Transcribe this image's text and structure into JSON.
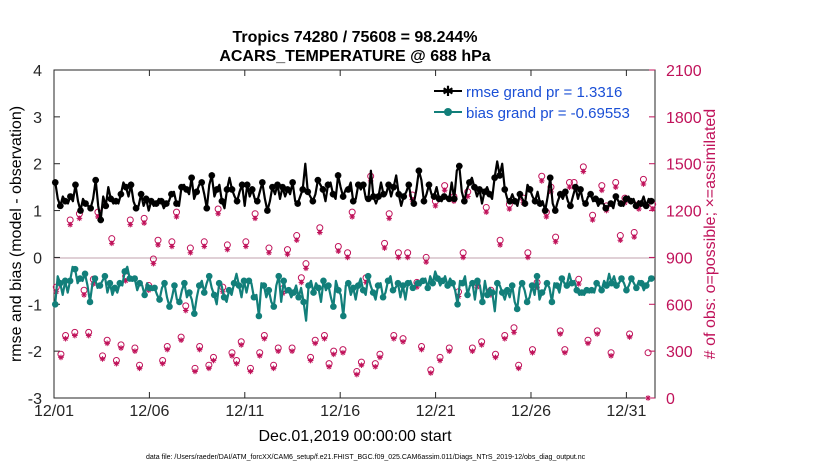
{
  "chart_data": {
    "type": "line",
    "title": "Tropics 74280 / 75608 = 98.244%",
    "subtitle": "ACARS_TEMPERATURE @ 688 hPa",
    "xlabel": "Dec.01,2019 00:00:00 start",
    "ylabel": "rmse and bias (model - observation)",
    "y2label": "# of obs: o=possible; ×=assimilated",
    "footnote": "data file: /Users/raeder/DAI/ATM_forcXX/CAM6_setup/f.e21.FHIST_BGC.f09_025.CAM6assim.011/Diags_NTrS_2019-12/obs_diag_output.nc",
    "xlim": [
      0,
      31.5
    ],
    "ylim": [
      -3,
      4
    ],
    "y2lim": [
      0,
      2100
    ],
    "x_ticks": [
      0,
      5,
      10,
      15,
      20,
      25,
      30
    ],
    "x_tick_labels": [
      "12/01",
      "12/06",
      "12/11",
      "12/16",
      "12/21",
      "12/26",
      "12/31"
    ],
    "y_ticks": [
      -3,
      -2,
      -1,
      0,
      1,
      2,
      3,
      4
    ],
    "y_tick_labels": [
      "-3",
      "-2",
      "-1",
      "0",
      "1",
      "2",
      "3",
      "4"
    ],
    "y2_ticks": [
      0,
      300,
      600,
      900,
      1200,
      1500,
      1800,
      2100
    ],
    "y2_tick_labels": [
      "0",
      "300",
      "600",
      "900",
      "1200",
      "1500",
      "1800",
      "2100"
    ],
    "legend_position": "top-right",
    "series": [
      {
        "name": "rmse grand pr = 1.3316",
        "color": "#000000",
        "marker": "star",
        "values": [
          1.6,
          1.25,
          1.1,
          1.3,
          1.2,
          1.15,
          1.3,
          1.2,
          1.55,
          1.2,
          1.0,
          1.25,
          1.15,
          1.1,
          1.05,
          1.25,
          1.65,
          1.1,
          0.8,
          1.3,
          1.1,
          1.5,
          1.25,
          1.15,
          1.2,
          1.15,
          1.35,
          1.6,
          1.5,
          1.3,
          1.55,
          1.2,
          1.05,
          1.1,
          1.35,
          1.1,
          1.25,
          1.0,
          1.2,
          1.1,
          1.15,
          1.25,
          1.2,
          1.05,
          1.15,
          1.2,
          1.35,
          1.4,
          1.15,
          1.1,
          1.5,
          1.55,
          1.45,
          1.35,
          1.7,
          1.25,
          1.4,
          1.55,
          1.6,
          1.35,
          1.05,
          1.55,
          1.75,
          1.3,
          1.45,
          1.55,
          1.2,
          1.05,
          1.45,
          1.7,
          1.45,
          1.3,
          1.2,
          1.4,
          1.55,
          1.1,
          1.55,
          1.3,
          1.45,
          1.25,
          1.2,
          1.4,
          1.6,
          1.25,
          1.0,
          1.2,
          1.5,
          1.35,
          1.55,
          1.25,
          1.5,
          1.3,
          1.45,
          1.35,
          1.6,
          1.2,
          1.15,
          1.3,
          1.45,
          2.0,
          1.4,
          1.3,
          1.2,
          1.35,
          1.65,
          1.55,
          1.45,
          1.2,
          1.55,
          1.6,
          1.35,
          1.25,
          1.75,
          1.5,
          1.3,
          1.45,
          1.45,
          1.6,
          1.2,
          1.25,
          1.55,
          1.45,
          1.55,
          1.25,
          1.25,
          1.85,
          1.3,
          1.15,
          1.3,
          1.6,
          1.35,
          1.35,
          1.55,
          1.3,
          1.5,
          1.75,
          1.35,
          1.1,
          1.3,
          1.4,
          1.55,
          1.25,
          1.15,
          1.45,
          1.85,
          1.65,
          1.2,
          1.35,
          1.55,
          1.35,
          1.3,
          1.5,
          1.25,
          1.2,
          1.3,
          1.3,
          1.25,
          1.6,
          1.25,
          1.85,
          1.95,
          1.4,
          1.2,
          1.45,
          1.6,
          1.7,
          1.5,
          1.3,
          1.45,
          1.15,
          1.4,
          1.5,
          1.35,
          1.25,
          1.7,
          2.05,
          1.75,
          2.0,
          1.45,
          1.25,
          1.2,
          1.35,
          1.2,
          1.1,
          1.35,
          1.25,
          1.15,
          1.55,
          1.45,
          1.3,
          1.2,
          1.4,
          1.15,
          1.2,
          1.0,
          1.3,
          1.7,
          1.15,
          1.0,
          1.2,
          1.35,
          1.25,
          1.4,
          1.2,
          1.1,
          1.3,
          1.5,
          1.25,
          1.45,
          1.2,
          1.15,
          1.3,
          1.35,
          1.2,
          1.25,
          1.1,
          1.2,
          1.15,
          1.05,
          1.1,
          1.15,
          1.05,
          1.3,
          1.2,
          1.15,
          1.1,
          1.25,
          1.3,
          1.2,
          1.25,
          1.1,
          1.2,
          1.15,
          1.3,
          1.1,
          1.25,
          1.2,
          1.25
        ]
      },
      {
        "name": "bias grand pr = -0.69553",
        "color": "#127f7a",
        "marker": "circle",
        "values": [
          -1.0,
          -0.4,
          -0.55,
          -0.8,
          -0.5,
          -0.75,
          -0.5,
          -0.2,
          -0.25,
          -0.55,
          -0.45,
          -0.5,
          -0.35,
          -0.6,
          -0.95,
          -0.55,
          -0.45,
          -0.65,
          -0.6,
          -0.5,
          -0.4,
          -0.75,
          -0.55,
          -0.8,
          -0.65,
          -0.75,
          -0.55,
          -0.6,
          -0.3,
          -0.2,
          -0.45,
          -0.5,
          -0.45,
          -0.7,
          -0.55,
          -0.6,
          -0.8,
          -0.55,
          -0.65,
          -0.7,
          -0.65,
          -0.8,
          -0.9,
          -0.65,
          -0.55,
          -0.85,
          -1.05,
          -0.85,
          -0.6,
          -0.9,
          -0.95,
          -0.7,
          -0.55,
          -0.85,
          -0.75,
          -0.9,
          -1.2,
          -0.85,
          -0.6,
          -0.5,
          -0.75,
          -0.55,
          -0.4,
          -0.65,
          -0.8,
          -1.0,
          -0.55,
          -0.6,
          -0.85,
          -0.95,
          -0.7,
          -0.8,
          -0.55,
          -0.35,
          -0.6,
          -0.85,
          -0.5,
          -0.75,
          -0.5,
          -0.55,
          -0.85,
          -0.8,
          -1.25,
          -0.55,
          -0.6,
          -0.85,
          -0.7,
          -0.95,
          -1.05,
          -0.6,
          -0.4,
          -0.95,
          -0.5,
          -0.75,
          -0.7,
          -0.85,
          -0.75,
          -0.6,
          -0.85,
          -0.65,
          -0.95,
          -1.35,
          -0.6,
          -0.5,
          -0.75,
          -0.55,
          -0.65,
          -0.95,
          -0.5,
          -0.7,
          -0.6,
          -0.85,
          -1.05,
          -0.5,
          -0.7,
          -0.8,
          -1.25,
          -0.6,
          -0.55,
          -0.8,
          -0.65,
          -0.9,
          -0.6,
          -0.45,
          -0.7,
          -0.8,
          -0.4,
          -0.6,
          -0.75,
          -0.9,
          -0.6,
          -0.55,
          -0.85,
          -0.75,
          -0.5,
          -0.4,
          -0.7,
          -0.65,
          -0.55,
          -0.85,
          -0.6,
          -0.9,
          -0.55,
          -0.5,
          -0.65,
          -0.6,
          -0.55,
          -0.6,
          -0.5,
          -0.45,
          -0.65,
          -0.4,
          -0.55,
          -0.3,
          -0.45,
          -0.6,
          -0.5,
          -0.4,
          -0.6,
          -0.45,
          -0.55,
          -0.7,
          -1.0,
          -0.5,
          -0.55,
          -0.4,
          -0.8,
          -0.6,
          -0.55,
          -0.9,
          -0.5,
          -0.6,
          -0.95,
          -0.5,
          -0.8,
          -0.65,
          -0.75,
          -1.15,
          -0.55,
          -0.6,
          -0.75,
          -0.9,
          -0.7,
          -0.85,
          -0.6,
          -0.95,
          -1.1,
          -0.65,
          -0.55,
          -0.7,
          -0.95,
          -0.85,
          -0.6,
          -0.8,
          -0.4,
          -0.9,
          -0.75,
          -0.7,
          -0.55,
          -0.65,
          -0.95,
          -0.55,
          -0.6,
          -0.75,
          -0.45,
          -0.55,
          -0.6,
          -0.35,
          -0.55,
          -0.5,
          -0.7,
          -0.8,
          -0.75,
          -0.8,
          -0.7,
          -0.75,
          -0.7,
          -0.75,
          -0.55,
          -0.6,
          -0.7,
          -0.5,
          -0.6,
          -0.35,
          -0.55,
          -0.4,
          -0.6,
          -0.55,
          -0.45,
          -0.55,
          -0.7,
          -0.6,
          -0.45,
          -0.55,
          -0.65,
          -0.5,
          -0.55,
          -0.7,
          -0.6,
          -0.5,
          -0.45,
          -0.4
        ]
      },
      {
        "name": "obs possible",
        "color": "#c0125a",
        "marker": "circle-open",
        "axis": "right",
        "values": [
          710,
          280,
          400,
          1140,
          420,
          1180,
          690,
          420,
          760,
          1190,
          270,
          370,
          1020,
          240,
          340,
          780,
          1140,
          320,
          210,
          1150,
          720,
          890,
          1010,
          240,
          330,
          1000,
          1190,
          390,
          590,
          960,
          190,
          330,
          1000,
          210,
          260,
          1210,
          710,
          980,
          290,
          240,
          360,
          1000,
          190,
          1180,
          290,
          400,
          960,
          210,
          320,
          700,
          950,
          320,
          1040,
          770,
          860,
          260,
          370,
          1090,
          400,
          220,
          300,
          970,
          310,
          930,
          1190,
          170,
          230,
          770,
          1420,
          220,
          280,
          990,
          1180,
          400,
          930,
          380,
          930,
          1300,
          740,
          330,
          900,
          180,
          1260,
          260,
          1360,
          320,
          1290,
          680,
          930,
          1320,
          320,
          740,
          360,
          1220,
          690,
          280,
          1010,
          400,
          1240,
          450,
          210,
          1280,
          930,
          310,
          740,
          1420,
          1190,
          1350,
          1030,
          430,
          310,
          1380,
          1380,
          760,
          1480,
          370,
          1170,
          430,
          1360,
          1230,
          290,
          1380,
          1040,
          1280,
          410,
          1060,
          1240,
          1400,
          290,
          1240
        ]
      },
      {
        "name": "obs assimilated",
        "color": "#c0125a",
        "marker": "x",
        "axis": "right",
        "values": [
          680,
          260,
          380,
          1110,
          400,
          1150,
          660,
          400,
          730,
          1160,
          250,
          350,
          990,
          220,
          320,
          750,
          1110,
          300,
          190,
          1120,
          690,
          860,
          980,
          220,
          310,
          970,
          1160,
          370,
          560,
          930,
          170,
          310,
          970,
          190,
          240,
          1180,
          680,
          950,
          270,
          220,
          340,
          970,
          170,
          1150,
          270,
          380,
          930,
          190,
          300,
          670,
          920,
          300,
          1010,
          740,
          830,
          240,
          350,
          1060,
          380,
          200,
          280,
          940,
          290,
          900,
          1160,
          150,
          210,
          740,
          1390,
          200,
          260,
          960,
          1150,
          380,
          900,
          360,
          900,
          1270,
          710,
          310,
          870,
          160,
          1230,
          240,
          1330,
          300,
          1260,
          650,
          900,
          1290,
          300,
          710,
          340,
          1190,
          660,
          260,
          980,
          380,
          1210,
          420,
          190,
          1250,
          900,
          290,
          710,
          1390,
          1160,
          1320,
          1000,
          410,
          290,
          1350,
          1350,
          730,
          1450,
          350,
          1140,
          410,
          1330,
          1200,
          270,
          1350,
          1010,
          1250,
          390,
          1030,
          1210,
          1370,
          0,
          1210
        ]
      }
    ]
  }
}
